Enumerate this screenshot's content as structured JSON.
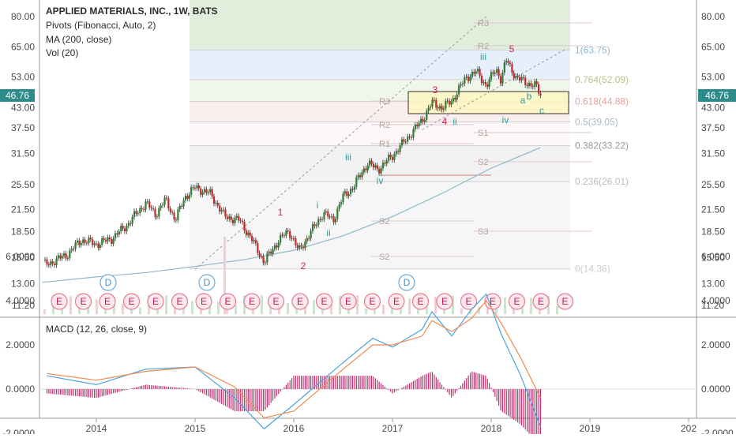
{
  "header": {
    "title": "APPLIED MATERIALS, INC., 1W, BATS",
    "indicators": [
      "Pivots (Fibonacci, Auto, 2)",
      "MA (200, close)",
      "Vol (20)"
    ],
    "macd_label": "MACD (12, 26, close, 9)"
  },
  "chart_data": [
    {
      "type": "candlestick",
      "title": "APPLIED MATERIALS, INC., 1W, BATS",
      "x_ticks": [
        "2014",
        "2015",
        "2016",
        "2017",
        "2018",
        "2019",
        "202"
      ],
      "y_ticks": [
        "80.00",
        "65.00",
        "53.00",
        "43.00",
        "37.50",
        "31.50",
        "25.50",
        "21.50",
        "18.50",
        "15.50",
        "13.00",
        "11.20"
      ],
      "ylim": [
        11.2,
        80
      ],
      "y_scale": "log",
      "last_price": "46.76",
      "close_path": [
        {
          "date": "2013.5",
          "close": 14.8
        },
        {
          "date": "2013.7",
          "close": 15.8
        },
        {
          "date": "2013.85",
          "close": 17.5
        },
        {
          "date": "2014.0",
          "close": 17.0
        },
        {
          "date": "2014.15",
          "close": 17.6
        },
        {
          "date": "2014.3",
          "close": 19.2
        },
        {
          "date": "2014.5",
          "close": 22.5
        },
        {
          "date": "2014.6",
          "close": 20.8
        },
        {
          "date": "2014.7",
          "close": 23.0
        },
        {
          "date": "2014.8",
          "close": 20.0
        },
        {
          "date": "2014.9",
          "close": 23.5
        },
        {
          "date": "2015.0",
          "close": 25.0
        },
        {
          "date": "2015.15",
          "close": 24.0
        },
        {
          "date": "2015.3",
          "close": 20.5
        },
        {
          "date": "2015.45",
          "close": 20.0
        },
        {
          "date": "2015.55",
          "close": 18.0
        },
        {
          "date": "2015.7",
          "close": 15.0
        },
        {
          "date": "2015.85",
          "close": 17.5
        },
        {
          "date": "2015.95",
          "close": 18.6
        },
        {
          "date": "2016.05",
          "close": 16.2
        },
        {
          "date": "2016.15",
          "close": 18.0
        },
        {
          "date": "2016.3",
          "close": 21.0
        },
        {
          "date": "2016.4",
          "close": 20.0
        },
        {
          "date": "2016.5",
          "close": 23.5
        },
        {
          "date": "2016.6",
          "close": 25.0
        },
        {
          "date": "2016.75",
          "close": 29.5
        },
        {
          "date": "2016.85",
          "close": 28.2
        },
        {
          "date": "2017.0",
          "close": 31.0
        },
        {
          "date": "2017.15",
          "close": 35.0
        },
        {
          "date": "2017.3",
          "close": 39.5
        },
        {
          "date": "2017.4",
          "close": 44.5
        },
        {
          "date": "2017.5",
          "close": 43.0
        },
        {
          "date": "2017.6",
          "close": 45.0
        },
        {
          "date": "2017.75",
          "close": 53.0
        },
        {
          "date": "2017.85",
          "close": 55.0
        },
        {
          "date": "2017.95",
          "close": 50.0
        },
        {
          "date": "2018.05",
          "close": 56.0
        },
        {
          "date": "2018.1",
          "close": 52.0
        },
        {
          "date": "2018.15",
          "close": 59.5
        },
        {
          "date": "2018.25",
          "close": 53.0
        },
        {
          "date": "2018.35",
          "close": 51.0
        },
        {
          "date": "2018.45",
          "close": 50.0
        },
        {
          "date": "2018.5",
          "close": 46.76
        }
      ],
      "fibonacci_levels": [
        {
          "label": "1(63.75)",
          "value": 63.75
        },
        {
          "label": "0.764(52.09)",
          "value": 52.09
        },
        {
          "label": "0.618(44.88)",
          "value": 44.88
        },
        {
          "label": "0.5(39.05)",
          "value": 39.05
        },
        {
          "label": "0.382(33.22)",
          "value": 33.22
        },
        {
          "label": "0.236(26.01)",
          "value": 26.01
        },
        {
          "label": "0(14.36)",
          "value": 14.36
        }
      ],
      "pivot_labels": [
        "R3",
        "R2",
        "R1",
        "S1",
        "S2",
        "R3",
        "R2",
        "R1",
        "P",
        "S1",
        "S2",
        "S3"
      ],
      "wave_labels_red": [
        "1",
        "2",
        "3",
        "4",
        "5"
      ],
      "wave_labels_teal": [
        "i",
        "ii",
        "iii",
        "iv",
        "iii",
        "ii",
        "iii",
        "iv",
        "a",
        "b",
        "c",
        "ii",
        "c"
      ],
      "events_dividend": [
        "D",
        "D",
        "D"
      ],
      "events_earnings": [
        "E",
        "E",
        "E",
        "E",
        "E",
        "E",
        "E",
        "E",
        "E",
        "E",
        "E",
        "E",
        "E",
        "E",
        "E",
        "E",
        "E",
        "E",
        "E",
        "E",
        "E",
        "E"
      ]
    },
    {
      "type": "line",
      "title": "MACD (12, 26, close, 9)",
      "y_ticks": [
        "6.0000",
        "4.0000",
        "2.0000",
        "0.0000",
        "-2.0000"
      ],
      "ylim": [
        -2.5,
        6.5
      ],
      "series": [
        {
          "name": "MACD",
          "points": [
            {
              "date": "2013.5",
              "value": 0.6
            },
            {
              "date": "2014.0",
              "value": 0.2
            },
            {
              "date": "2014.5",
              "value": 0.9
            },
            {
              "date": "2015.0",
              "value": 1.0
            },
            {
              "date": "2015.4",
              "value": -0.4
            },
            {
              "date": "2015.7",
              "value": -1.8
            },
            {
              "date": "2016.0",
              "value": -0.7
            },
            {
              "date": "2016.5",
              "value": 1.2
            },
            {
              "date": "2016.8",
              "value": 2.3
            },
            {
              "date": "2017.0",
              "value": 1.9
            },
            {
              "date": "2017.3",
              "value": 2.7
            },
            {
              "date": "2017.4",
              "value": 3.5
            },
            {
              "date": "2017.6",
              "value": 2.4
            },
            {
              "date": "2017.8",
              "value": 3.6
            },
            {
              "date": "2017.95",
              "value": 4.3
            },
            {
              "date": "2018.1",
              "value": 2.5
            },
            {
              "date": "2018.3",
              "value": 0.6
            },
            {
              "date": "2018.5",
              "value": -1.7
            }
          ]
        },
        {
          "name": "Signal",
          "points": [
            {
              "date": "2013.5",
              "value": 0.7
            },
            {
              "date": "2014.0",
              "value": 0.4
            },
            {
              "date": "2014.5",
              "value": 0.8
            },
            {
              "date": "2015.0",
              "value": 1.0
            },
            {
              "date": "2015.4",
              "value": 0.1
            },
            {
              "date": "2015.7",
              "value": -1.3
            },
            {
              "date": "2016.0",
              "value": -1.0
            },
            {
              "date": "2016.5",
              "value": 0.9
            },
            {
              "date": "2016.8",
              "value": 2.0
            },
            {
              "date": "2017.0",
              "value": 2.0
            },
            {
              "date": "2017.3",
              "value": 2.4
            },
            {
              "date": "2017.4",
              "value": 3.1
            },
            {
              "date": "2017.6",
              "value": 2.6
            },
            {
              "date": "2017.8",
              "value": 3.2
            },
            {
              "date": "2017.95",
              "value": 4.0
            },
            {
              "date": "2018.1",
              "value": 3.0
            },
            {
              "date": "2018.3",
              "value": 1.4
            },
            {
              "date": "2018.5",
              "value": -0.4
            }
          ]
        }
      ]
    }
  ]
}
